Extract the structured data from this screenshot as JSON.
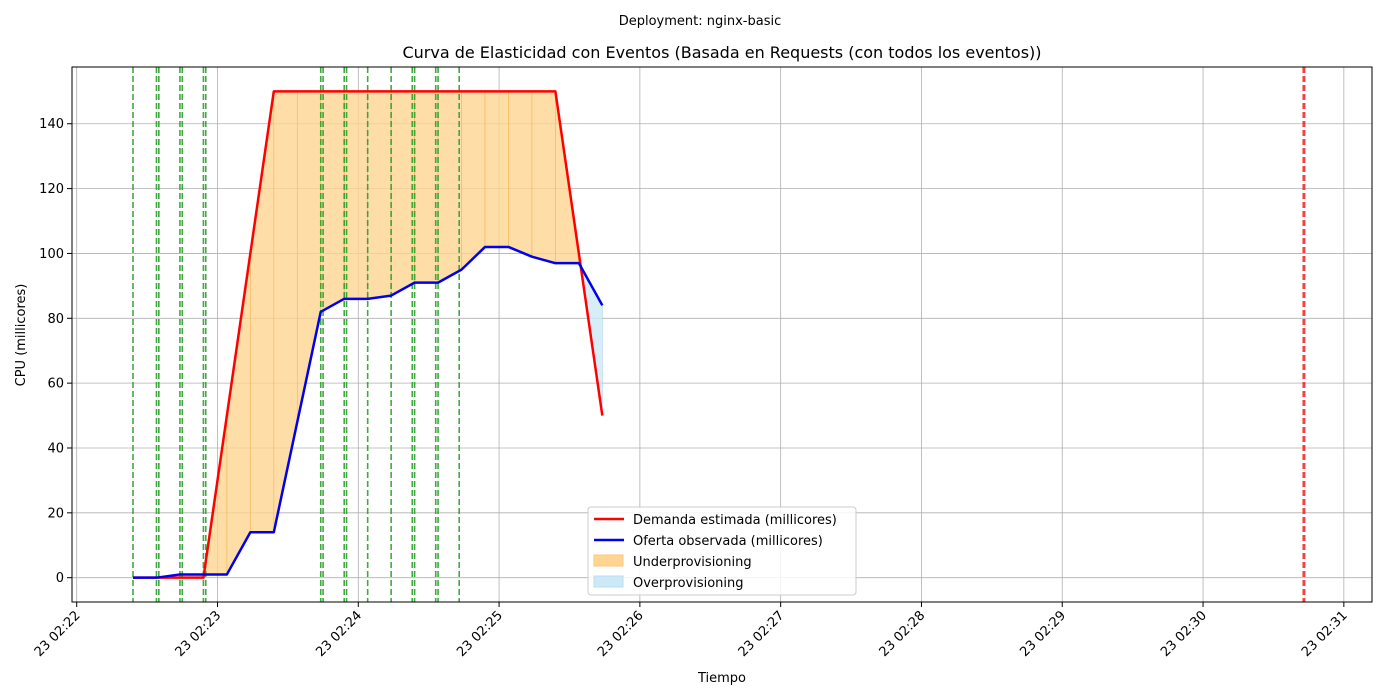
{
  "suptitle": "Deployment: nginx-basic",
  "chart_data": {
    "type": "line",
    "title": "Curva de Elasticidad con Eventos (Basada en Requests (con todos los eventos))",
    "xlabel": "Tiempo",
    "ylabel": "CPU (millicores)",
    "x_ticks": [
      "23 02:22",
      "23 02:23",
      "23 02:24",
      "23 02:25",
      "23 02:26",
      "23 02:27",
      "23 02:28",
      "23 02:29",
      "23 02:30",
      "23 02:31"
    ],
    "y_ticks": [
      0,
      20,
      40,
      60,
      80,
      100,
      120,
      140
    ],
    "x_range": [
      "02:21:58",
      "02:31:12"
    ],
    "ylim": [
      -7.5,
      157.5
    ],
    "grid": true,
    "legend_position": "bottom-center",
    "series": [
      {
        "name": "Demanda estimada (millicores)",
        "color": "#ff0000",
        "x": [
          "02:22:24",
          "02:22:34",
          "02:22:44",
          "02:22:54",
          "02:23:04",
          "02:23:14",
          "02:23:24",
          "02:23:34",
          "02:23:44",
          "02:23:54",
          "02:24:04",
          "02:24:14",
          "02:24:24",
          "02:24:34",
          "02:24:44",
          "02:24:54",
          "02:25:04",
          "02:25:14",
          "02:25:24",
          "02:25:34",
          "02:25:44"
        ],
        "values": [
          0,
          0,
          0,
          0,
          50,
          100,
          150,
          150,
          150,
          150,
          150,
          150,
          150,
          150,
          150,
          150,
          150,
          150,
          150,
          100,
          50
        ]
      },
      {
        "name": "Oferta observada (millicores)",
        "color": "#0000ee",
        "x": [
          "02:22:24",
          "02:22:34",
          "02:22:44",
          "02:22:54",
          "02:23:04",
          "02:23:14",
          "02:23:24",
          "02:23:34",
          "02:23:44",
          "02:23:54",
          "02:24:04",
          "02:24:14",
          "02:24:24",
          "02:24:34",
          "02:24:44",
          "02:24:54",
          "02:25:04",
          "02:25:14",
          "02:25:24",
          "02:25:34",
          "02:25:44"
        ],
        "values": [
          0,
          0,
          1,
          1,
          1,
          14,
          14,
          48,
          82,
          86,
          86,
          87,
          91,
          91,
          95,
          102,
          102,
          99,
          97,
          97,
          84
        ]
      }
    ],
    "fills": [
      {
        "name": "Underprovisioning",
        "color": "#ffd591"
      },
      {
        "name": "Overprovisioning",
        "color": "#cde8f6"
      }
    ],
    "event_lines": [
      {
        "x": "02:22:24",
        "color": "#2ca02c"
      },
      {
        "x": "02:22:34",
        "color": "#2ca02c"
      },
      {
        "x": "02:22:35",
        "color": "#2ca02c"
      },
      {
        "x": "02:22:44",
        "color": "#2ca02c"
      },
      {
        "x": "02:22:45",
        "color": "#2ca02c"
      },
      {
        "x": "02:22:54",
        "color": "#2ca02c"
      },
      {
        "x": "02:22:55",
        "color": "#2ca02c"
      },
      {
        "x": "02:23:44",
        "color": "#2ca02c"
      },
      {
        "x": "02:23:45",
        "color": "#2ca02c"
      },
      {
        "x": "02:23:54",
        "color": "#2ca02c"
      },
      {
        "x": "02:23:55",
        "color": "#2ca02c"
      },
      {
        "x": "02:24:04",
        "color": "#2ca02c"
      },
      {
        "x": "02:24:14",
        "color": "#2ca02c"
      },
      {
        "x": "02:24:23",
        "color": "#2ca02c"
      },
      {
        "x": "02:24:24",
        "color": "#2ca02c"
      },
      {
        "x": "02:24:33",
        "color": "#2ca02c"
      },
      {
        "x": "02:24:34",
        "color": "#2ca02c"
      },
      {
        "x": "02:24:43",
        "color": "#2ca02c"
      },
      {
        "x": "02:30:43",
        "color": "#ee2222",
        "width": "thick"
      }
    ]
  }
}
